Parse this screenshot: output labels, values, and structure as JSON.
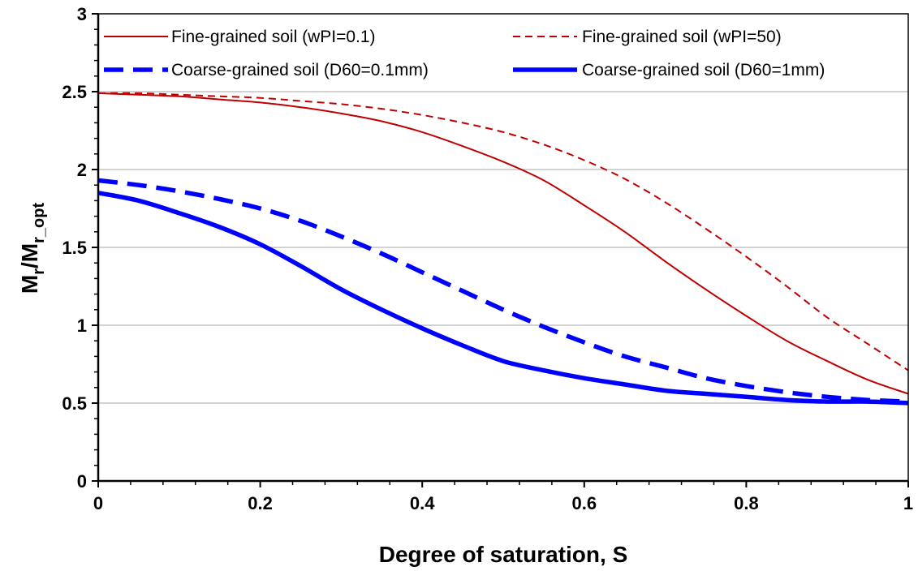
{
  "chart_data": {
    "type": "line",
    "title": "",
    "xlabel": "Degree of saturation, S",
    "ylabel": {
      "main": "M",
      "sub1": "r",
      "mid": "/M",
      "sub2": "r_opt"
    },
    "xlim": [
      0,
      1
    ],
    "ylim": [
      0,
      3
    ],
    "xticks": [
      "0",
      "0.2",
      "0.4",
      "0.6",
      "0.8",
      "1"
    ],
    "yticks": [
      "0",
      "0.5",
      "1",
      "1.5",
      "2",
      "2.5",
      "3"
    ],
    "grid": "horizontal",
    "legend_position": "top",
    "x": [
      0,
      0.05,
      0.1,
      0.15,
      0.2,
      0.25,
      0.3,
      0.35,
      0.4,
      0.45,
      0.5,
      0.55,
      0.6,
      0.65,
      0.7,
      0.75,
      0.8,
      0.85,
      0.9,
      0.95,
      1.0
    ],
    "series": [
      {
        "name": "Fine-grained soil (wPI=0.1)",
        "color": "#c00000",
        "style": "solid",
        "width": "thin",
        "values": [
          2.49,
          2.48,
          2.47,
          2.45,
          2.43,
          2.4,
          2.36,
          2.31,
          2.24,
          2.15,
          2.05,
          1.93,
          1.77,
          1.6,
          1.41,
          1.23,
          1.06,
          0.9,
          0.77,
          0.65,
          0.56
        ]
      },
      {
        "name": "Fine-grained soil (wPI=50)",
        "color": "#c00000",
        "style": "dashed",
        "width": "thin",
        "values": [
          2.49,
          2.49,
          2.48,
          2.47,
          2.46,
          2.44,
          2.42,
          2.39,
          2.35,
          2.3,
          2.24,
          2.16,
          2.06,
          1.94,
          1.79,
          1.62,
          1.44,
          1.25,
          1.05,
          0.88,
          0.71
        ]
      },
      {
        "name": "Coarse-grained soil (D60=0.1mm)",
        "color": "#0000ff",
        "style": "dashed",
        "width": "thick",
        "values": [
          1.93,
          1.9,
          1.86,
          1.81,
          1.75,
          1.67,
          1.57,
          1.46,
          1.34,
          1.22,
          1.1,
          0.99,
          0.89,
          0.8,
          0.73,
          0.66,
          0.61,
          0.57,
          0.54,
          0.52,
          0.51
        ]
      },
      {
        "name": "Coarse-grained soil (D60=1mm)",
        "color": "#0000ff",
        "style": "solid",
        "width": "thick",
        "values": [
          1.85,
          1.8,
          1.72,
          1.63,
          1.52,
          1.38,
          1.23,
          1.1,
          0.98,
          0.87,
          0.77,
          0.71,
          0.66,
          0.62,
          0.58,
          0.56,
          0.54,
          0.52,
          0.51,
          0.51,
          0.5
        ]
      }
    ]
  }
}
